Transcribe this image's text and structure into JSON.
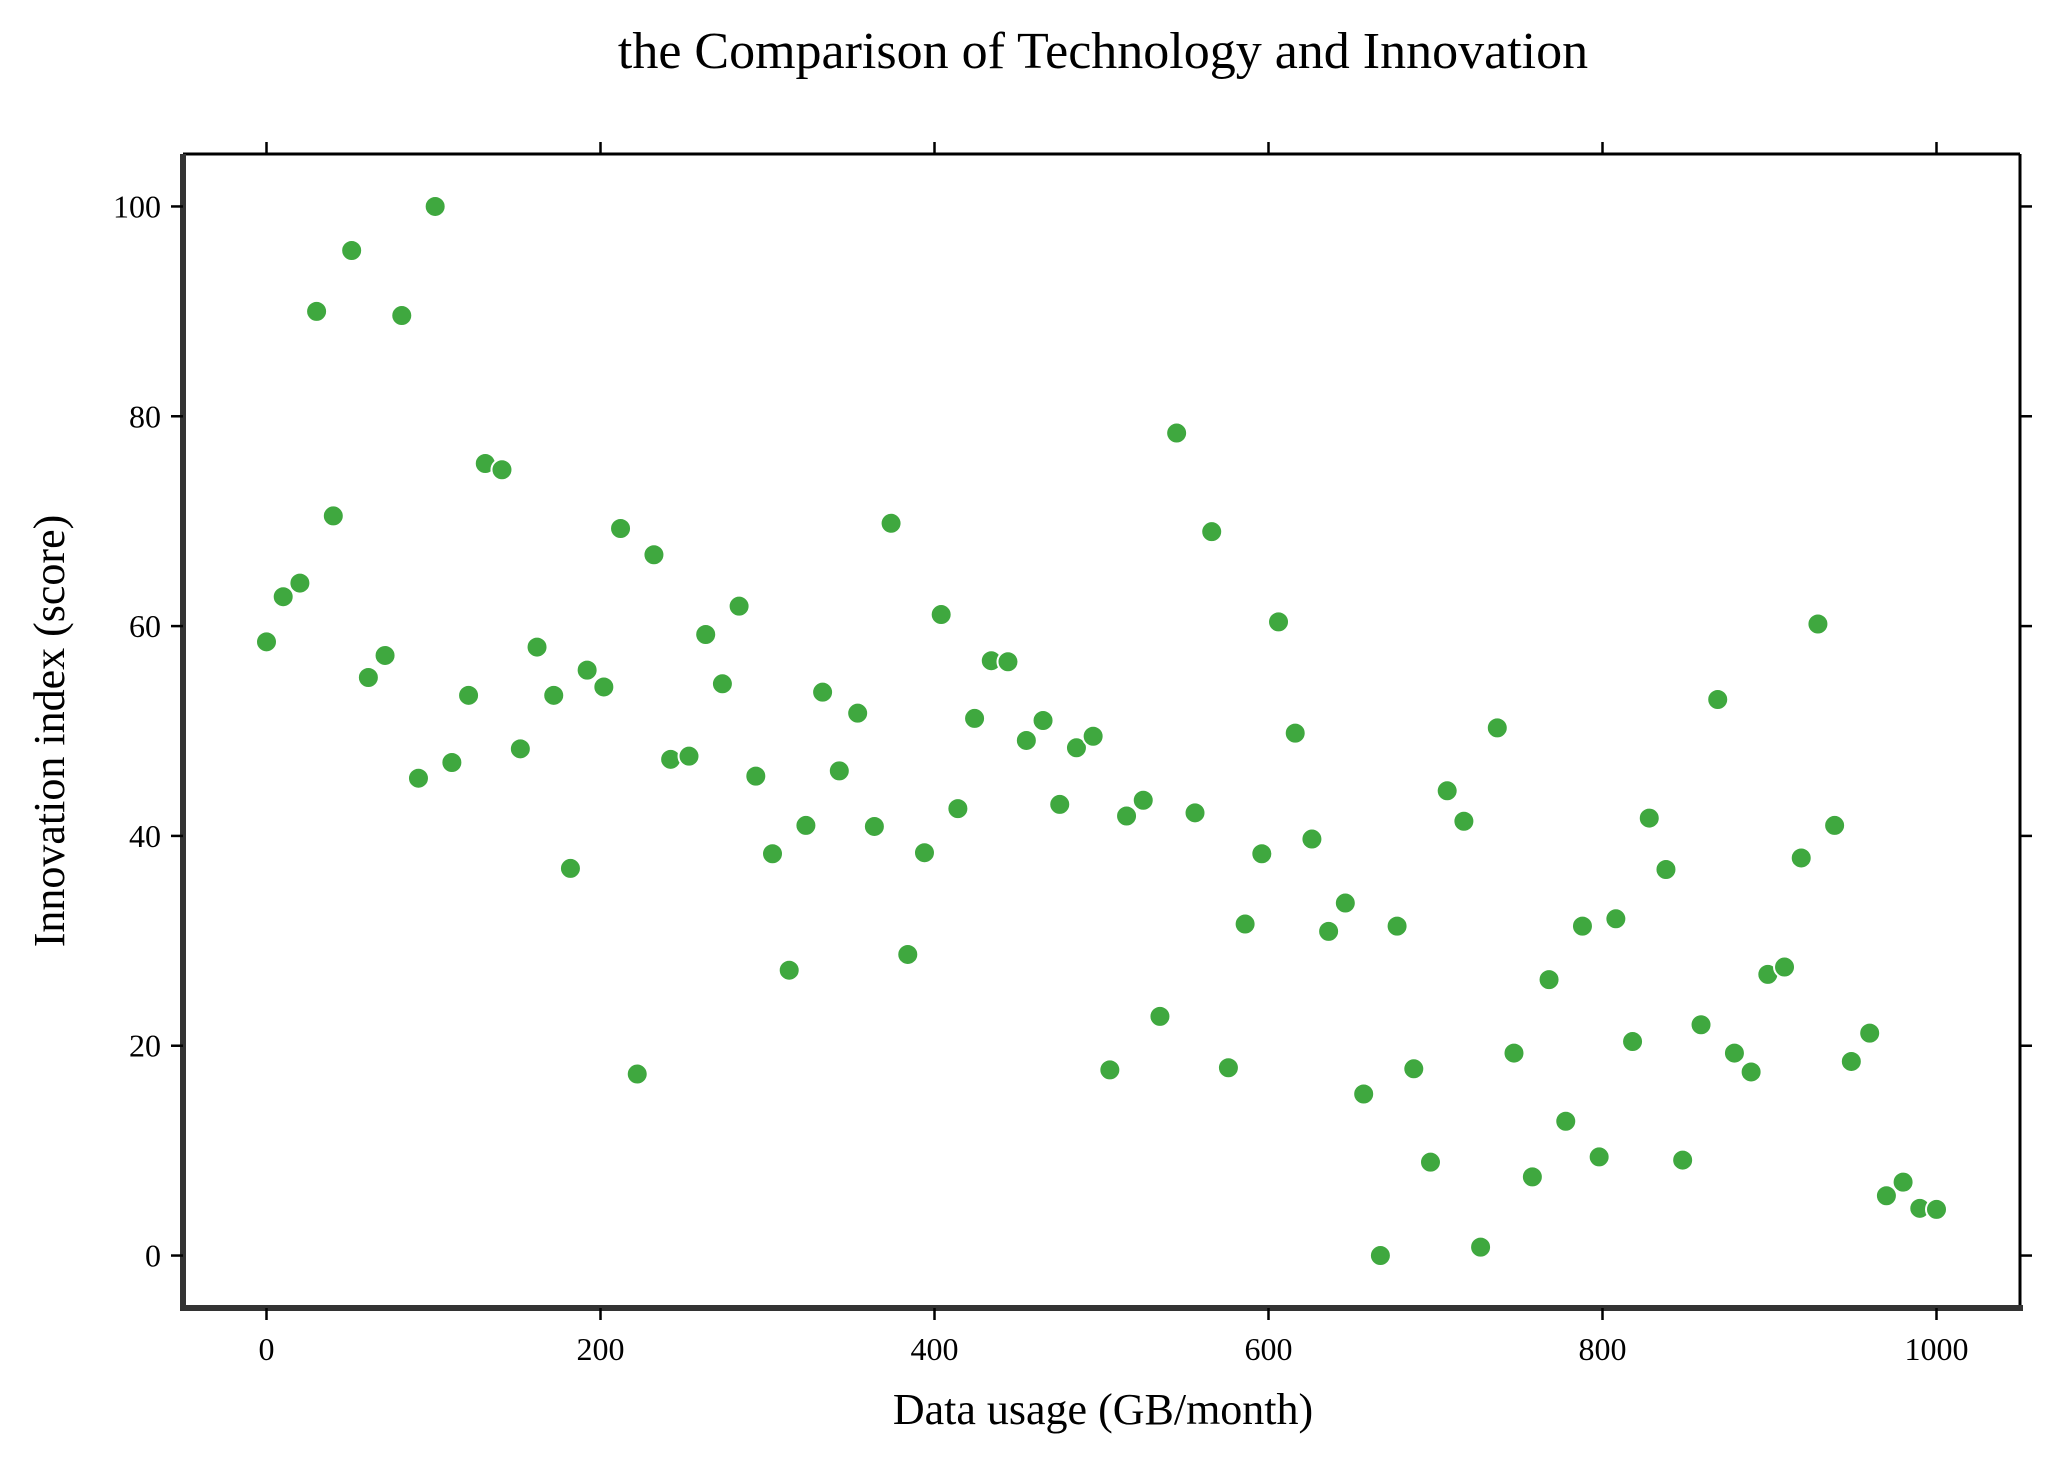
{
  "chart_data": {
    "type": "scatter",
    "title": "the Comparison of Technology and Innovation",
    "xlabel": "Data usage (GB/month)",
    "ylabel": "Innovation index (score)",
    "xlim": [
      -50,
      1050
    ],
    "ylim": [
      -5,
      105
    ],
    "xticks": [
      0,
      200,
      400,
      600,
      800,
      1000
    ],
    "yticks": [
      0,
      20,
      40,
      60,
      80,
      100
    ],
    "grid": false,
    "legend": "none",
    "point_color": "#3fa83f",
    "series": [
      {
        "x": [
          0,
          10,
          20,
          30,
          40,
          51,
          61,
          71,
          81,
          91,
          101,
          111,
          121,
          131,
          141,
          152,
          162,
          172,
          182,
          192,
          202,
          212,
          222,
          232,
          242,
          253,
          263,
          273,
          283,
          293,
          303,
          313,
          323,
          333,
          343,
          354,
          364,
          374,
          384,
          394,
          404,
          414,
          424,
          434,
          444,
          455,
          465,
          475,
          485,
          495,
          505,
          515,
          525,
          535,
          545,
          556,
          566,
          576,
          586,
          596,
          606,
          616,
          626,
          636,
          646,
          657,
          667,
          677,
          687,
          697,
          707,
          717,
          727,
          737,
          747,
          758,
          768,
          778,
          788,
          798,
          808,
          818,
          828,
          838,
          848,
          859,
          869,
          879,
          889,
          899,
          909,
          919,
          929,
          939,
          949,
          960,
          970,
          980,
          990,
          1000
        ],
        "y": [
          58.5,
          62.8,
          64.1,
          90.0,
          70.5,
          95.8,
          55.1,
          57.2,
          89.6,
          45.5,
          100.0,
          47.0,
          53.4,
          75.5,
          74.9,
          48.3,
          58.0,
          53.4,
          36.9,
          55.8,
          54.2,
          69.3,
          17.3,
          66.8,
          47.3,
          47.6,
          59.2,
          54.5,
          61.9,
          45.7,
          38.3,
          27.2,
          41.0,
          53.7,
          46.2,
          51.7,
          40.9,
          69.8,
          28.7,
          38.4,
          61.1,
          42.6,
          51.2,
          56.7,
          56.6,
          49.1,
          51.0,
          43.0,
          48.4,
          49.5,
          17.7,
          41.9,
          43.4,
          22.8,
          78.4,
          42.2,
          69.0,
          17.9,
          31.6,
          38.3,
          60.4,
          49.8,
          39.7,
          30.9,
          33.6,
          15.4,
          0.0,
          31.4,
          17.8,
          8.9,
          44.3,
          41.4,
          0.8,
          50.3,
          19.3,
          7.5,
          26.3,
          12.8,
          31.4,
          9.4,
          32.1,
          20.4,
          41.7,
          36.8,
          9.1,
          22.0,
          53.0,
          19.3,
          17.5,
          26.8,
          27.5,
          37.9,
          60.2,
          41.0,
          18.5,
          21.2,
          5.7,
          7.0,
          4.5,
          4.4
        ]
      }
    ]
  }
}
